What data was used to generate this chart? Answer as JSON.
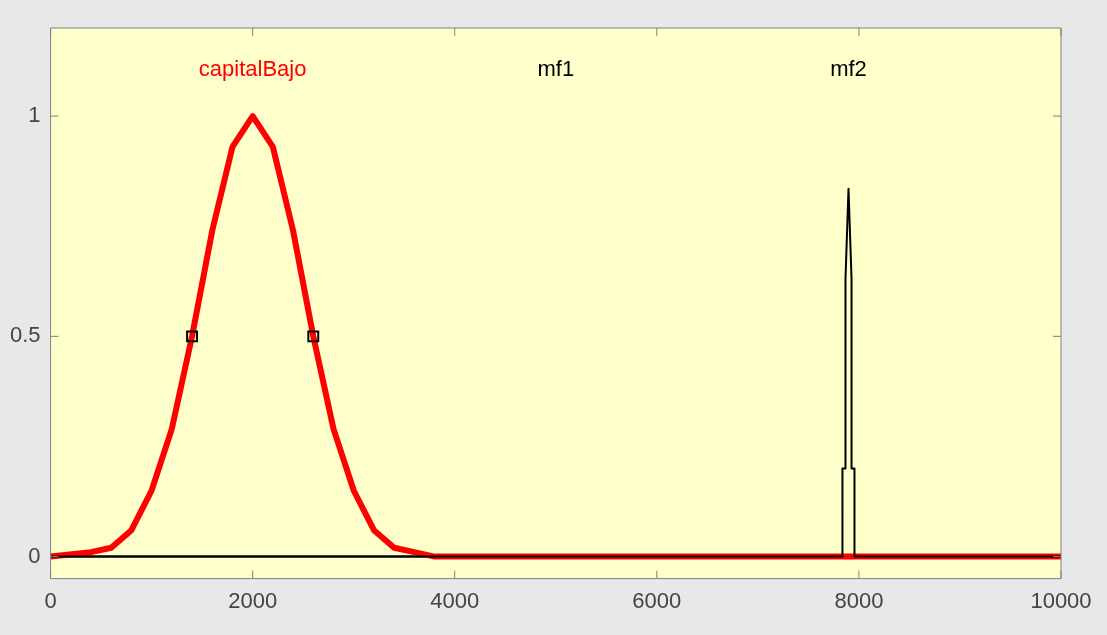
{
  "chart_data": {
    "type": "line",
    "xlim": [
      0,
      10000
    ],
    "xticks": [
      0,
      2000,
      4000,
      6000,
      8000,
      10000
    ],
    "ylim": [
      -0.05,
      1.2
    ],
    "yticks": [
      0,
      0.5,
      1
    ],
    "grid": false,
    "legend": false,
    "marker": "none",
    "line_style": "solid",
    "annotations": [
      "mf1",
      "mf2"
    ],
    "series": [
      {
        "color": "#000000",
        "x": [
          0,
          10000
        ],
        "values": [
          0,
          0
        ]
      },
      {
        "name": "capitalBajo",
        "color": "#ff0000",
        "x": [
          0,
          400,
          600,
          800,
          1000,
          1200,
          1400,
          1600,
          1800,
          2000,
          2200,
          2400,
          2600,
          2800,
          3000,
          3200,
          3400,
          3600,
          3800,
          10000
        ],
        "values": [
          0,
          0.01,
          0.02,
          0.06,
          0.15,
          0.29,
          0.5,
          0.74,
          0.93,
          1,
          0.93,
          0.74,
          0.5,
          0.29,
          0.15,
          0.06,
          0.02,
          0.01,
          0,
          0
        ]
      },
      {
        "color": "#000000",
        "x": [
          0,
          7837,
          7837,
          7867,
          7867,
          7897,
          7927,
          7927,
          7956,
          7956,
          10000
        ],
        "values": [
          0,
          0,
          0.2,
          0.2,
          0.63,
          0.835,
          0.63,
          0.2,
          0.2,
          0,
          0
        ]
      },
      {
        "type": "scatter",
        "color": "#000000",
        "marker": "square",
        "x": [
          1400,
          2600
        ],
        "values": [
          0.5,
          0.5
        ]
      }
    ]
  }
}
